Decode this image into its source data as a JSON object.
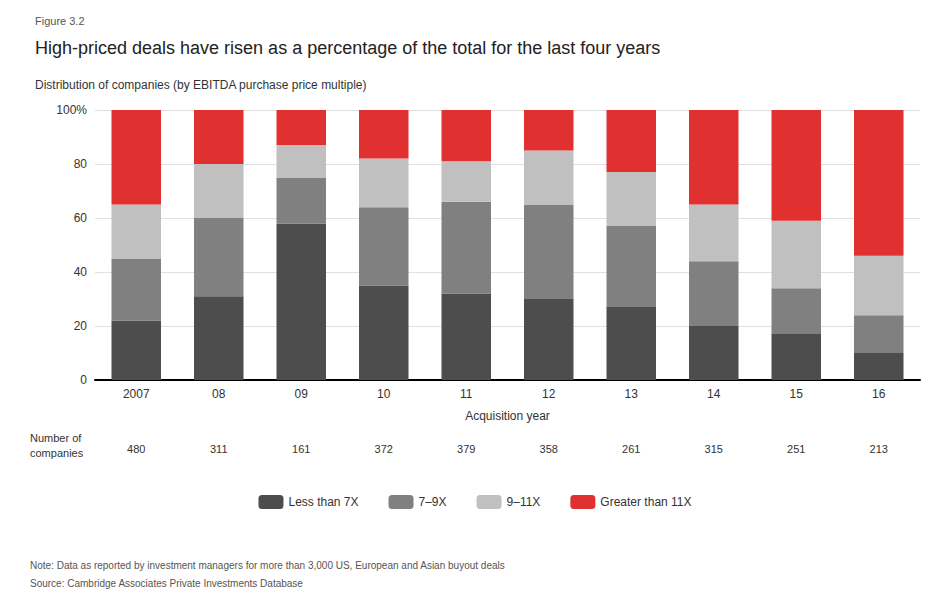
{
  "chart_data": {
    "type": "bar",
    "stacked": true,
    "figure_label": "Figure 3.2",
    "title": "High-priced deals have risen as a percentage of the total for the last four years",
    "subtitle": "Distribution of companies (by EBITDA purchase price multiple)",
    "xlabel": "Acquisition year",
    "categories": [
      "2007",
      "08",
      "09",
      "10",
      "11",
      "12",
      "13",
      "14",
      "15",
      "16"
    ],
    "series": [
      {
        "name": "Less than 7X",
        "color": "#4d4d4d",
        "values": [
          22,
          31,
          58,
          35,
          32,
          30,
          27,
          20,
          17,
          10
        ]
      },
      {
        "name": "7–9X",
        "color": "#808080",
        "values": [
          23,
          29,
          17,
          29,
          34,
          35,
          30,
          24,
          17,
          14
        ]
      },
      {
        "name": "9–11X",
        "color": "#c0c0c0",
        "values": [
          20,
          20,
          12,
          18,
          15,
          20,
          20,
          21,
          25,
          22
        ]
      },
      {
        "name": "Greater than 11X",
        "color": "#e03030",
        "values": [
          35,
          20,
          13,
          18,
          19,
          15,
          23,
          35,
          41,
          54
        ]
      }
    ],
    "n_companies": {
      "label": "Number of\ncompanies",
      "values": [
        480,
        311,
        161,
        372,
        379,
        358,
        261,
        315,
        251,
        213
      ]
    },
    "ylim": [
      0,
      100
    ],
    "yticks": [
      0,
      20,
      40,
      60,
      80,
      {
        "value": 100,
        "label": "100%"
      }
    ],
    "grid": true,
    "legend": "bottom",
    "note": "Note: Data as reported by investment managers for more than 3,000 US, European and Asian buyout deals",
    "source": "Source: Cambridge Associates Private Investments Database"
  }
}
